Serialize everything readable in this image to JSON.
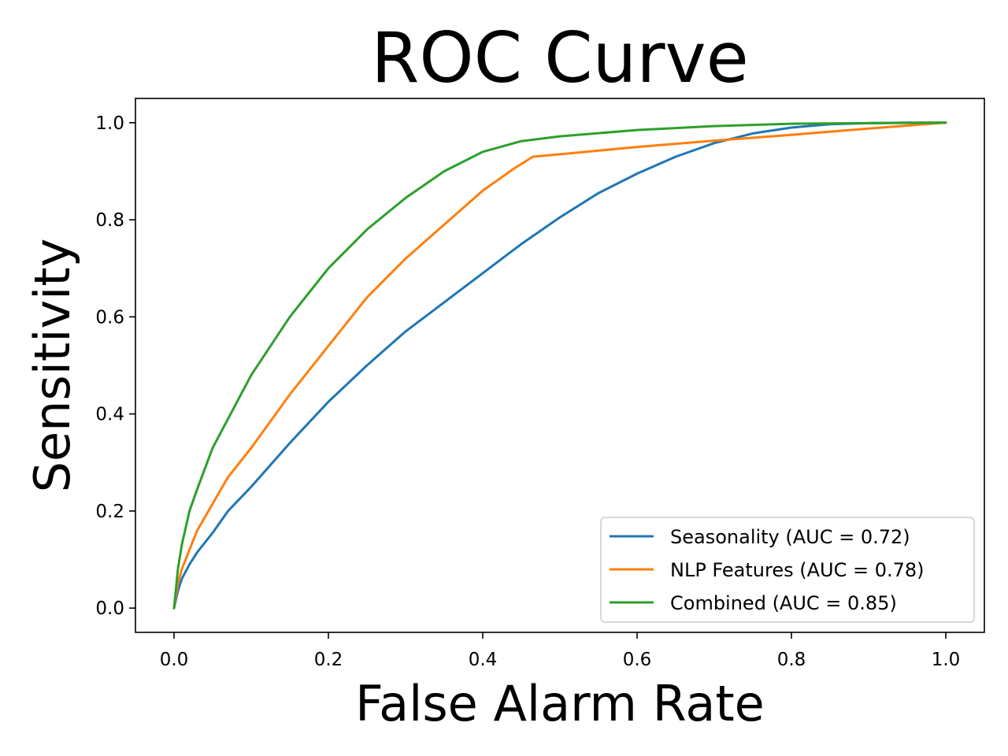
{
  "chart_data": {
    "type": "line",
    "title": "ROC Curve",
    "xlabel": "False Alarm Rate",
    "ylabel": "Sensitivity",
    "xlim": [
      -0.05,
      1.05
    ],
    "ylim": [
      -0.05,
      1.05
    ],
    "xticks": [
      "0.0",
      "0.2",
      "0.4",
      "0.6",
      "0.8",
      "1.0"
    ],
    "yticks": [
      "0.0",
      "0.2",
      "0.4",
      "0.6",
      "0.8",
      "1.0"
    ],
    "grid": false,
    "legend_position": "lower-right",
    "series": [
      {
        "name": "Seasonality (AUC = 0.72)",
        "color": "#1f77b4",
        "x": [
          0,
          0.005,
          0.01,
          0.02,
          0.03,
          0.05,
          0.07,
          0.1,
          0.15,
          0.2,
          0.25,
          0.3,
          0.35,
          0.4,
          0.45,
          0.5,
          0.55,
          0.6,
          0.65,
          0.7,
          0.75,
          0.8,
          0.85,
          0.9,
          0.95,
          1.0
        ],
        "y": [
          0,
          0.035,
          0.06,
          0.09,
          0.115,
          0.155,
          0.2,
          0.25,
          0.34,
          0.425,
          0.5,
          0.57,
          0.63,
          0.69,
          0.75,
          0.805,
          0.855,
          0.895,
          0.93,
          0.958,
          0.978,
          0.99,
          0.997,
          0.999,
          1.0,
          1.0
        ]
      },
      {
        "name": "NLP Features (AUC = 0.78)",
        "color": "#ff7f0e",
        "x": [
          0,
          0.005,
          0.01,
          0.02,
          0.03,
          0.05,
          0.07,
          0.1,
          0.15,
          0.2,
          0.25,
          0.3,
          0.35,
          0.4,
          0.44,
          0.465,
          0.5,
          0.6,
          0.7,
          0.8,
          0.9,
          1.0
        ],
        "y": [
          0,
          0.05,
          0.08,
          0.12,
          0.16,
          0.215,
          0.27,
          0.33,
          0.44,
          0.54,
          0.64,
          0.72,
          0.79,
          0.86,
          0.905,
          0.93,
          0.935,
          0.95,
          0.963,
          0.975,
          0.988,
          1.0
        ]
      },
      {
        "name": "Combined (AUC = 0.85)",
        "color": "#2ca02c",
        "x": [
          0,
          0.005,
          0.01,
          0.02,
          0.03,
          0.05,
          0.07,
          0.1,
          0.15,
          0.2,
          0.25,
          0.3,
          0.35,
          0.4,
          0.45,
          0.5,
          0.6,
          0.7,
          0.8,
          0.9,
          1.0
        ],
        "y": [
          0,
          0.08,
          0.13,
          0.2,
          0.245,
          0.33,
          0.39,
          0.48,
          0.6,
          0.7,
          0.78,
          0.845,
          0.9,
          0.94,
          0.962,
          0.972,
          0.985,
          0.993,
          0.998,
          0.999,
          1.0
        ]
      }
    ]
  }
}
